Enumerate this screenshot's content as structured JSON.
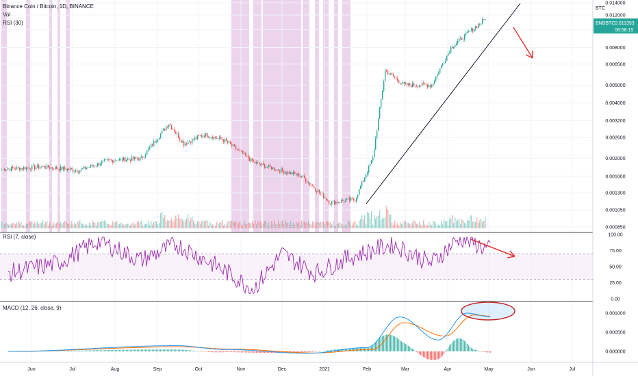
{
  "header": {
    "symbol_line": "Binance Coin / Bitcoin, 1D, BINANCE",
    "vol_label": "Vol",
    "rsi30_label": "RSI (30)"
  },
  "price_badge": {
    "ticker": "BNBBTC",
    "price": "0.011393",
    "countdown": "08:58:15"
  },
  "axis_currency": "BTC",
  "rsi_panel_label": "RSI (7, close)",
  "macd_panel_label": "MACD (12, 26, close, 9)",
  "colors": {
    "up": "#26a69a",
    "down": "#ef5350",
    "rsi": "#9c27b0",
    "macd": "#2196f3",
    "signal": "#ff6d00",
    "shade": "#e6c7e6",
    "arrow": "#e53935",
    "ellipse": "#c62828",
    "badge": "#26a69a"
  },
  "chart_data": [
    {
      "type": "candlestick",
      "title": "Binance Coin / Bitcoin, 1D, BINANCE",
      "x_ticks": [
        "Jun",
        "Jul",
        "Aug",
        "Sep",
        "Oct",
        "Nov",
        "Dec",
        "2021",
        "Feb",
        "Mar",
        "Apr",
        "May",
        "Jun",
        "Jul"
      ],
      "y_ticks": [
        "0.014000",
        "0.012000",
        "0.010000",
        "0.008000",
        "0.006500",
        "0.005000",
        "0.004000",
        "0.003200",
        "0.002600",
        "0.002000",
        "0.001600",
        "0.001300",
        "0.001050",
        "0.000850"
      ],
      "y_scale": "log",
      "ylim": [
        0.00082,
        0.014
      ],
      "approx_close_path": [
        {
          "date": "2020-05-15",
          "value": 0.00175
        },
        {
          "date": "2020-06-15",
          "value": 0.0018
        },
        {
          "date": "2020-07-10",
          "value": 0.00172
        },
        {
          "date": "2020-08-01",
          "value": 0.00195
        },
        {
          "date": "2020-08-25",
          "value": 0.002
        },
        {
          "date": "2020-09-14",
          "value": 0.0031
        },
        {
          "date": "2020-09-25",
          "value": 0.0024
        },
        {
          "date": "2020-10-10",
          "value": 0.0027
        },
        {
          "date": "2020-10-25",
          "value": 0.0025
        },
        {
          "date": "2020-11-15",
          "value": 0.0019
        },
        {
          "date": "2020-12-01",
          "value": 0.00175
        },
        {
          "date": "2020-12-20",
          "value": 0.0016
        },
        {
          "date": "2021-01-10",
          "value": 0.00115
        },
        {
          "date": "2021-01-28",
          "value": 0.0012
        },
        {
          "date": "2021-02-10",
          "value": 0.002
        },
        {
          "date": "2021-02-19",
          "value": 0.006
        },
        {
          "date": "2021-03-05",
          "value": 0.005
        },
        {
          "date": "2021-03-25",
          "value": 0.005
        },
        {
          "date": "2021-04-08",
          "value": 0.008
        },
        {
          "date": "2021-04-20",
          "value": 0.0095
        },
        {
          "date": "2021-05-03",
          "value": 0.01139
        }
      ],
      "current_price": 0.011393,
      "ticker_badge": "BNBBTC",
      "annotations": [
        "ascending trendline",
        "red down arrow",
        "shaded periods"
      ]
    },
    {
      "type": "line",
      "title": "RSI (7, close)",
      "y_ticks": [
        "100.00",
        "75.00",
        "50.00",
        "25.00",
        "0.00"
      ],
      "ylim": [
        0,
        100
      ],
      "levels": [
        70,
        30
      ],
      "approx_path": [
        {
          "date": "2020-05-15",
          "value": 40
        },
        {
          "date": "2020-06-20",
          "value": 55
        },
        {
          "date": "2020-07-20",
          "value": 90
        },
        {
          "date": "2020-08-20",
          "value": 60
        },
        {
          "date": "2020-09-15",
          "value": 85
        },
        {
          "date": "2020-10-15",
          "value": 50
        },
        {
          "date": "2020-11-10",
          "value": 15
        },
        {
          "date": "2020-12-01",
          "value": 70
        },
        {
          "date": "2020-12-25",
          "value": 40
        },
        {
          "date": "2021-01-20",
          "value": 65
        },
        {
          "date": "2021-02-20",
          "value": 85
        },
        {
          "date": "2021-03-20",
          "value": 55
        },
        {
          "date": "2021-04-10",
          "value": 95
        },
        {
          "date": "2021-05-03",
          "value": 75
        }
      ],
      "annotations": [
        "red arrow bearish divergence"
      ]
    },
    {
      "type": "line",
      "title": "MACD (12, 26, close, 9)",
      "y_ticks": [
        "0.001000",
        "0.000500",
        "0.000000"
      ],
      "ylim": [
        -0.00025,
        0.00125
      ],
      "series": [
        {
          "name": "MACD",
          "approx_path": [
            {
              "date": "2020-05-15",
              "value": 0.0
            },
            {
              "date": "2020-09-15",
              "value": 0.00015
            },
            {
              "date": "2020-10-20",
              "value": 5e-05
            },
            {
              "date": "2020-12-20",
              "value": -5e-05
            },
            {
              "date": "2021-02-01",
              "value": 0.0001
            },
            {
              "date": "2021-02-25",
              "value": 0.0009
            },
            {
              "date": "2021-03-25",
              "value": 0.0003
            },
            {
              "date": "2021-04-15",
              "value": 0.001
            },
            {
              "date": "2021-05-03",
              "value": 0.0009
            }
          ]
        },
        {
          "name": "Signal",
          "approx_path": [
            {
              "date": "2020-05-15",
              "value": 0.0
            },
            {
              "date": "2020-09-18",
              "value": 0.00012
            },
            {
              "date": "2020-10-25",
              "value": 6e-05
            },
            {
              "date": "2020-12-25",
              "value": -4e-05
            },
            {
              "date": "2021-02-05",
              "value": 5e-05
            },
            {
              "date": "2021-02-28",
              "value": 0.00075
            },
            {
              "date": "2021-03-30",
              "value": 0.0004
            },
            {
              "date": "2021-04-20",
              "value": 0.00095
            },
            {
              "date": "2021-05-03",
              "value": 0.00092
            }
          ]
        }
      ],
      "annotations": [
        "red ellipse highlight"
      ]
    }
  ]
}
